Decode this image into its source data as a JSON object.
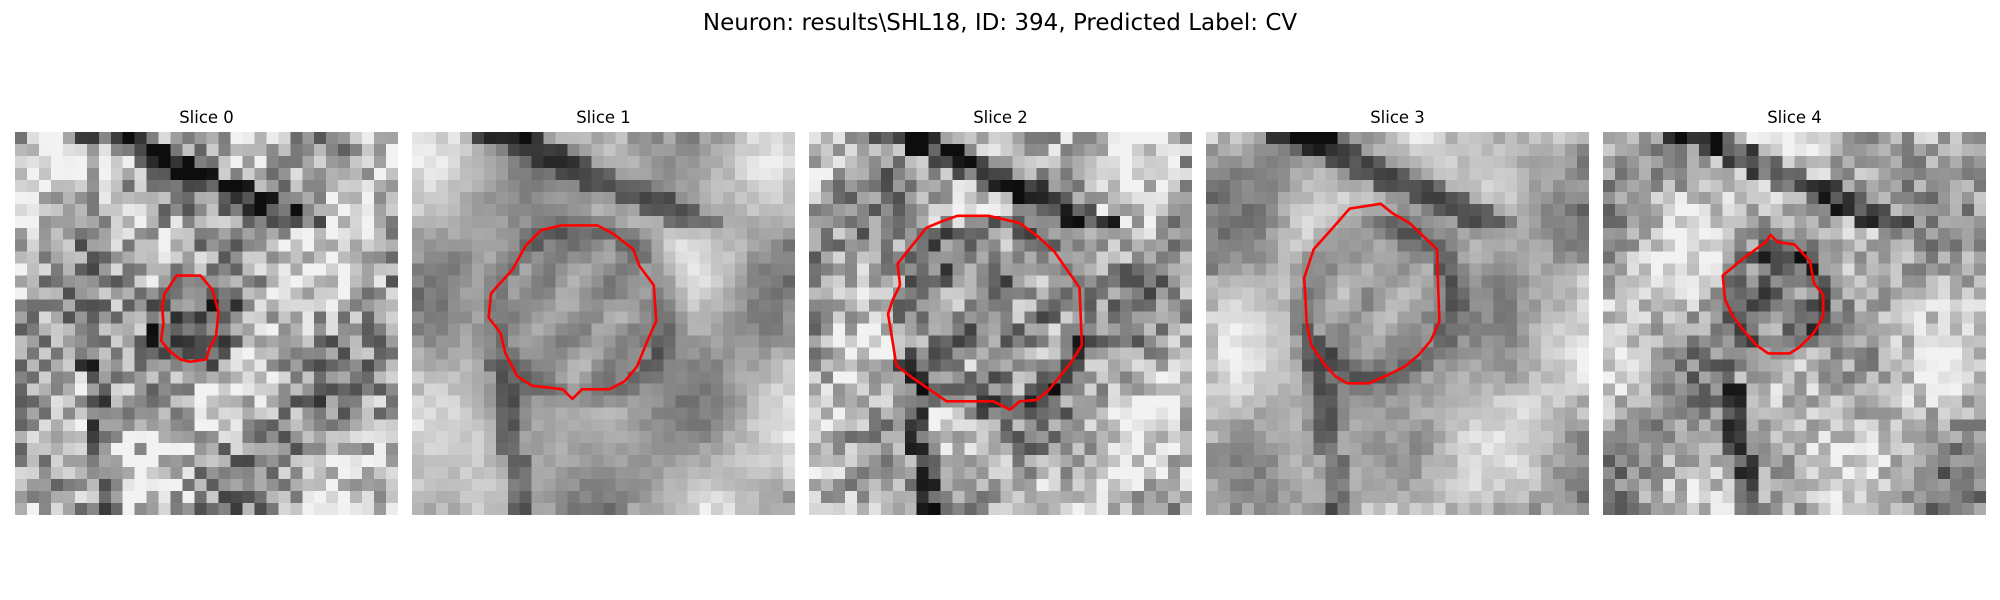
{
  "figure": {
    "title": "Neuron: results\\SHL18, ID: 394, Predicted Label: CV"
  },
  "panels": [
    {
      "title": "Slice 0",
      "image": "grayscale-microscopy-slice",
      "contour": "red-neuron-outline"
    },
    {
      "title": "Slice 1",
      "image": "grayscale-microscopy-slice",
      "contour": "red-neuron-outline"
    },
    {
      "title": "Slice 2",
      "image": "grayscale-microscopy-slice",
      "contour": "red-neuron-outline"
    },
    {
      "title": "Slice 3",
      "image": "grayscale-microscopy-slice",
      "contour": "red-neuron-outline"
    },
    {
      "title": "Slice 4",
      "image": "grayscale-microscopy-slice",
      "contour": "red-neuron-outline"
    }
  ],
  "colors": {
    "contour": "#ff0000",
    "background": "#ffffff"
  }
}
